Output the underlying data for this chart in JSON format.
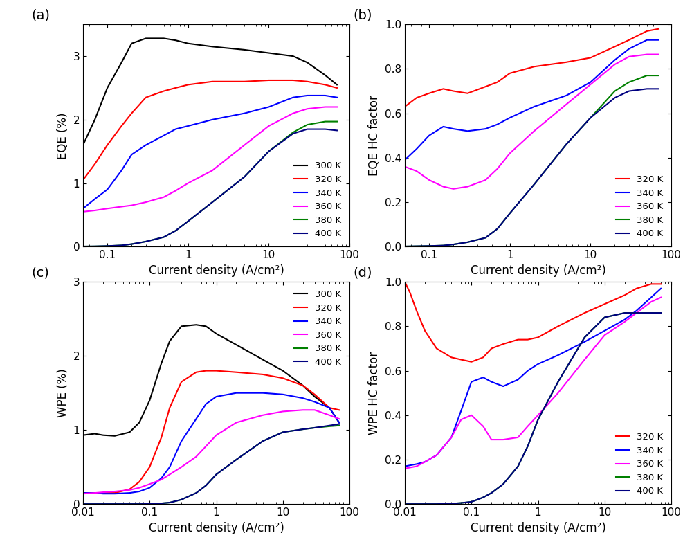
{
  "panel_labels": [
    "(a)",
    "(b)",
    "(c)",
    "(d)"
  ],
  "eqe_xlim": [
    0.05,
    100
  ],
  "eqe_ylim": [
    0,
    3.5
  ],
  "eqe_yticks": [
    0,
    1,
    2,
    3
  ],
  "eqe_ylabel": "EQE (%)",
  "eqe_xlabel": "Current density (A/cm²)",
  "eqehc_xlim": [
    0.05,
    100
  ],
  "eqehc_ylim": [
    0,
    1.0
  ],
  "eqehc_yticks": [
    0.0,
    0.2,
    0.4,
    0.6,
    0.8,
    1.0
  ],
  "eqehc_ylabel": "EQE HC factor",
  "eqehc_xlabel": "Current density (A/cm²)",
  "wpe_xlim": [
    0.01,
    100
  ],
  "wpe_ylim": [
    0,
    3.0
  ],
  "wpe_yticks": [
    0,
    1,
    2,
    3
  ],
  "wpe_ylabel": "WPE (%)",
  "wpe_xlabel": "Current density (A/cm²)",
  "wpehc_xlim": [
    0.01,
    100
  ],
  "wpehc_ylim": [
    0,
    1.0
  ],
  "wpehc_yticks": [
    0.0,
    0.2,
    0.4,
    0.6,
    0.8,
    1.0
  ],
  "wpehc_ylabel": "WPE HC factor",
  "wpehc_xlabel": "Current density (A/cm²)",
  "colors": {
    "300K": "#000000",
    "320K": "#ff0000",
    "340K": "#0000ff",
    "360K": "#ff00ff",
    "380K": "#008000",
    "400K": "#000080"
  },
  "eqe_data": {
    "300K": {
      "x": [
        0.05,
        0.07,
        0.1,
        0.15,
        0.2,
        0.3,
        0.5,
        0.7,
        1.0,
        2.0,
        5.0,
        10.0,
        20.0,
        30.0,
        50.0,
        70.0
      ],
      "y": [
        1.6,
        2.0,
        2.5,
        2.9,
        3.2,
        3.28,
        3.28,
        3.25,
        3.2,
        3.15,
        3.1,
        3.05,
        3.0,
        2.9,
        2.7,
        2.55
      ]
    },
    "320K": {
      "x": [
        0.05,
        0.07,
        0.1,
        0.15,
        0.2,
        0.3,
        0.5,
        0.7,
        1.0,
        2.0,
        5.0,
        10.0,
        20.0,
        30.0,
        50.0,
        70.0
      ],
      "y": [
        1.05,
        1.3,
        1.6,
        1.9,
        2.1,
        2.35,
        2.45,
        2.5,
        2.55,
        2.6,
        2.6,
        2.62,
        2.62,
        2.6,
        2.55,
        2.5
      ]
    },
    "340K": {
      "x": [
        0.05,
        0.07,
        0.1,
        0.15,
        0.2,
        0.3,
        0.5,
        0.7,
        1.0,
        2.0,
        5.0,
        10.0,
        20.0,
        30.0,
        50.0,
        70.0
      ],
      "y": [
        0.6,
        0.75,
        0.9,
        1.2,
        1.45,
        1.6,
        1.75,
        1.85,
        1.9,
        2.0,
        2.1,
        2.2,
        2.35,
        2.38,
        2.38,
        2.35
      ]
    },
    "360K": {
      "x": [
        0.05,
        0.07,
        0.1,
        0.15,
        0.2,
        0.3,
        0.5,
        0.7,
        1.0,
        2.0,
        5.0,
        10.0,
        20.0,
        30.0,
        50.0,
        70.0
      ],
      "y": [
        0.55,
        0.57,
        0.6,
        0.63,
        0.65,
        0.7,
        0.78,
        0.88,
        1.0,
        1.2,
        1.6,
        1.9,
        2.1,
        2.17,
        2.2,
        2.2
      ]
    },
    "380K": {
      "x": [
        0.05,
        0.07,
        0.1,
        0.15,
        0.2,
        0.3,
        0.5,
        0.7,
        1.0,
        2.0,
        5.0,
        10.0,
        20.0,
        30.0,
        50.0,
        70.0
      ],
      "y": [
        0.003,
        0.005,
        0.01,
        0.02,
        0.04,
        0.08,
        0.15,
        0.25,
        0.4,
        0.7,
        1.1,
        1.5,
        1.8,
        1.92,
        1.97,
        1.97
      ]
    },
    "400K": {
      "x": [
        0.05,
        0.07,
        0.1,
        0.15,
        0.2,
        0.3,
        0.5,
        0.7,
        1.0,
        2.0,
        5.0,
        10.0,
        20.0,
        30.0,
        50.0,
        70.0
      ],
      "y": [
        0.003,
        0.005,
        0.01,
        0.02,
        0.04,
        0.08,
        0.15,
        0.25,
        0.4,
        0.7,
        1.1,
        1.5,
        1.78,
        1.85,
        1.85,
        1.83
      ]
    }
  },
  "eqehc_data": {
    "320K": {
      "x": [
        0.05,
        0.07,
        0.1,
        0.15,
        0.2,
        0.3,
        0.5,
        0.7,
        1.0,
        2.0,
        5.0,
        10.0,
        20.0,
        30.0,
        50.0,
        70.0
      ],
      "y": [
        0.63,
        0.67,
        0.69,
        0.71,
        0.7,
        0.69,
        0.72,
        0.74,
        0.78,
        0.81,
        0.83,
        0.85,
        0.9,
        0.93,
        0.97,
        0.98
      ]
    },
    "340K": {
      "x": [
        0.05,
        0.07,
        0.1,
        0.15,
        0.2,
        0.3,
        0.5,
        0.7,
        1.0,
        2.0,
        5.0,
        10.0,
        20.0,
        30.0,
        50.0,
        70.0
      ],
      "y": [
        0.39,
        0.44,
        0.5,
        0.54,
        0.53,
        0.52,
        0.53,
        0.55,
        0.58,
        0.63,
        0.68,
        0.74,
        0.84,
        0.89,
        0.93,
        0.93
      ]
    },
    "360K": {
      "x": [
        0.05,
        0.07,
        0.1,
        0.15,
        0.2,
        0.3,
        0.5,
        0.7,
        1.0,
        2.0,
        5.0,
        10.0,
        20.0,
        30.0,
        50.0,
        70.0
      ],
      "y": [
        0.36,
        0.34,
        0.3,
        0.27,
        0.26,
        0.27,
        0.3,
        0.35,
        0.42,
        0.52,
        0.64,
        0.73,
        0.82,
        0.855,
        0.865,
        0.865
      ]
    },
    "380K": {
      "x": [
        0.05,
        0.07,
        0.1,
        0.15,
        0.2,
        0.3,
        0.5,
        0.7,
        1.0,
        2.0,
        5.0,
        10.0,
        20.0,
        30.0,
        50.0,
        70.0
      ],
      "y": [
        0.001,
        0.002,
        0.003,
        0.005,
        0.01,
        0.02,
        0.04,
        0.08,
        0.15,
        0.28,
        0.46,
        0.58,
        0.7,
        0.74,
        0.77,
        0.77
      ]
    },
    "400K": {
      "x": [
        0.05,
        0.07,
        0.1,
        0.15,
        0.2,
        0.3,
        0.5,
        0.7,
        1.0,
        2.0,
        5.0,
        10.0,
        20.0,
        30.0,
        50.0,
        70.0
      ],
      "y": [
        0.001,
        0.002,
        0.003,
        0.005,
        0.01,
        0.02,
        0.04,
        0.08,
        0.15,
        0.28,
        0.46,
        0.58,
        0.67,
        0.7,
        0.71,
        0.71
      ]
    }
  },
  "wpe_data": {
    "300K": {
      "x": [
        0.01,
        0.015,
        0.02,
        0.03,
        0.05,
        0.07,
        0.1,
        0.15,
        0.2,
        0.3,
        0.5,
        0.7,
        1.0,
        2.0,
        5.0,
        10.0,
        20.0,
        30.0,
        50.0,
        70.0
      ],
      "y": [
        0.93,
        0.95,
        0.93,
        0.92,
        0.97,
        1.1,
        1.4,
        1.9,
        2.2,
        2.4,
        2.42,
        2.4,
        2.3,
        2.15,
        1.95,
        1.8,
        1.6,
        1.45,
        1.3,
        1.1
      ]
    },
    "320K": {
      "x": [
        0.01,
        0.015,
        0.02,
        0.03,
        0.05,
        0.07,
        0.1,
        0.15,
        0.2,
        0.3,
        0.5,
        0.7,
        1.0,
        2.0,
        5.0,
        10.0,
        20.0,
        30.0,
        50.0,
        70.0
      ],
      "y": [
        0.15,
        0.15,
        0.15,
        0.15,
        0.2,
        0.3,
        0.5,
        0.9,
        1.3,
        1.65,
        1.78,
        1.8,
        1.8,
        1.78,
        1.75,
        1.7,
        1.6,
        1.48,
        1.3,
        1.27
      ]
    },
    "340K": {
      "x": [
        0.01,
        0.015,
        0.02,
        0.03,
        0.05,
        0.07,
        0.1,
        0.15,
        0.2,
        0.3,
        0.5,
        0.7,
        1.0,
        2.0,
        5.0,
        10.0,
        20.0,
        30.0,
        50.0,
        70.0
      ],
      "y": [
        0.15,
        0.15,
        0.14,
        0.14,
        0.15,
        0.17,
        0.22,
        0.35,
        0.5,
        0.85,
        1.15,
        1.35,
        1.45,
        1.5,
        1.5,
        1.48,
        1.43,
        1.38,
        1.3,
        1.1
      ]
    },
    "360K": {
      "x": [
        0.01,
        0.015,
        0.02,
        0.03,
        0.05,
        0.07,
        0.1,
        0.15,
        0.2,
        0.3,
        0.5,
        0.7,
        1.0,
        2.0,
        5.0,
        10.0,
        20.0,
        30.0,
        50.0,
        70.0
      ],
      "y": [
        0.14,
        0.15,
        0.16,
        0.17,
        0.19,
        0.22,
        0.27,
        0.33,
        0.4,
        0.5,
        0.64,
        0.78,
        0.93,
        1.1,
        1.2,
        1.25,
        1.27,
        1.27,
        1.2,
        1.15
      ]
    },
    "380K": {
      "x": [
        0.01,
        0.015,
        0.02,
        0.03,
        0.05,
        0.07,
        0.1,
        0.15,
        0.2,
        0.3,
        0.5,
        0.7,
        1.0,
        2.0,
        5.0,
        10.0,
        20.0,
        30.0,
        50.0,
        70.0
      ],
      "y": [
        0.0,
        0.0,
        0.0,
        0.0,
        0.0,
        0.0,
        0.002,
        0.01,
        0.02,
        0.06,
        0.15,
        0.25,
        0.4,
        0.6,
        0.85,
        0.97,
        1.01,
        1.03,
        1.05,
        1.06
      ]
    },
    "400K": {
      "x": [
        0.01,
        0.015,
        0.02,
        0.03,
        0.05,
        0.07,
        0.1,
        0.15,
        0.2,
        0.3,
        0.5,
        0.7,
        1.0,
        2.0,
        5.0,
        10.0,
        20.0,
        30.0,
        50.0,
        70.0
      ],
      "y": [
        0.0,
        0.0,
        0.0,
        0.0,
        0.0,
        0.0,
        0.002,
        0.01,
        0.02,
        0.06,
        0.15,
        0.25,
        0.4,
        0.6,
        0.85,
        0.97,
        1.01,
        1.03,
        1.06,
        1.08
      ]
    }
  },
  "wpehc_data": {
    "320K": {
      "x": [
        0.01,
        0.012,
        0.015,
        0.02,
        0.03,
        0.05,
        0.07,
        0.1,
        0.15,
        0.2,
        0.3,
        0.5,
        0.7,
        1.0,
        2.0,
        5.0,
        10.0,
        20.0,
        30.0,
        50.0,
        70.0
      ],
      "y": [
        1.0,
        0.95,
        0.87,
        0.78,
        0.7,
        0.66,
        0.65,
        0.64,
        0.66,
        0.7,
        0.72,
        0.74,
        0.74,
        0.75,
        0.8,
        0.86,
        0.9,
        0.94,
        0.97,
        0.99,
        0.99
      ]
    },
    "340K": {
      "x": [
        0.01,
        0.015,
        0.02,
        0.03,
        0.05,
        0.07,
        0.1,
        0.15,
        0.2,
        0.3,
        0.5,
        0.7,
        1.0,
        2.0,
        5.0,
        10.0,
        20.0,
        30.0,
        50.0,
        70.0
      ],
      "y": [
        0.17,
        0.18,
        0.19,
        0.22,
        0.3,
        0.42,
        0.55,
        0.57,
        0.55,
        0.53,
        0.56,
        0.6,
        0.63,
        0.67,
        0.73,
        0.78,
        0.83,
        0.87,
        0.93,
        0.97
      ]
    },
    "360K": {
      "x": [
        0.01,
        0.015,
        0.02,
        0.03,
        0.05,
        0.07,
        0.1,
        0.15,
        0.2,
        0.3,
        0.5,
        0.7,
        1.0,
        2.0,
        5.0,
        10.0,
        20.0,
        30.0,
        50.0,
        70.0
      ],
      "y": [
        0.16,
        0.17,
        0.19,
        0.22,
        0.3,
        0.38,
        0.4,
        0.35,
        0.29,
        0.29,
        0.3,
        0.35,
        0.4,
        0.5,
        0.65,
        0.76,
        0.82,
        0.86,
        0.91,
        0.93
      ]
    },
    "380K": {
      "x": [
        0.01,
        0.015,
        0.02,
        0.03,
        0.05,
        0.07,
        0.1,
        0.15,
        0.2,
        0.3,
        0.5,
        0.7,
        1.0,
        2.0,
        5.0,
        10.0,
        20.0,
        30.0,
        50.0,
        70.0
      ],
      "y": [
        0.0,
        0.0,
        0.0,
        0.0,
        0.002,
        0.005,
        0.01,
        0.03,
        0.05,
        0.09,
        0.17,
        0.26,
        0.38,
        0.55,
        0.75,
        0.84,
        0.86,
        0.86,
        0.86,
        0.86
      ]
    },
    "400K": {
      "x": [
        0.01,
        0.015,
        0.02,
        0.03,
        0.05,
        0.07,
        0.1,
        0.15,
        0.2,
        0.3,
        0.5,
        0.7,
        1.0,
        2.0,
        5.0,
        10.0,
        20.0,
        30.0,
        50.0,
        70.0
      ],
      "y": [
        0.0,
        0.0,
        0.0,
        0.0,
        0.002,
        0.005,
        0.01,
        0.03,
        0.05,
        0.09,
        0.17,
        0.26,
        0.38,
        0.55,
        0.75,
        0.84,
        0.86,
        0.86,
        0.86,
        0.86
      ]
    }
  }
}
